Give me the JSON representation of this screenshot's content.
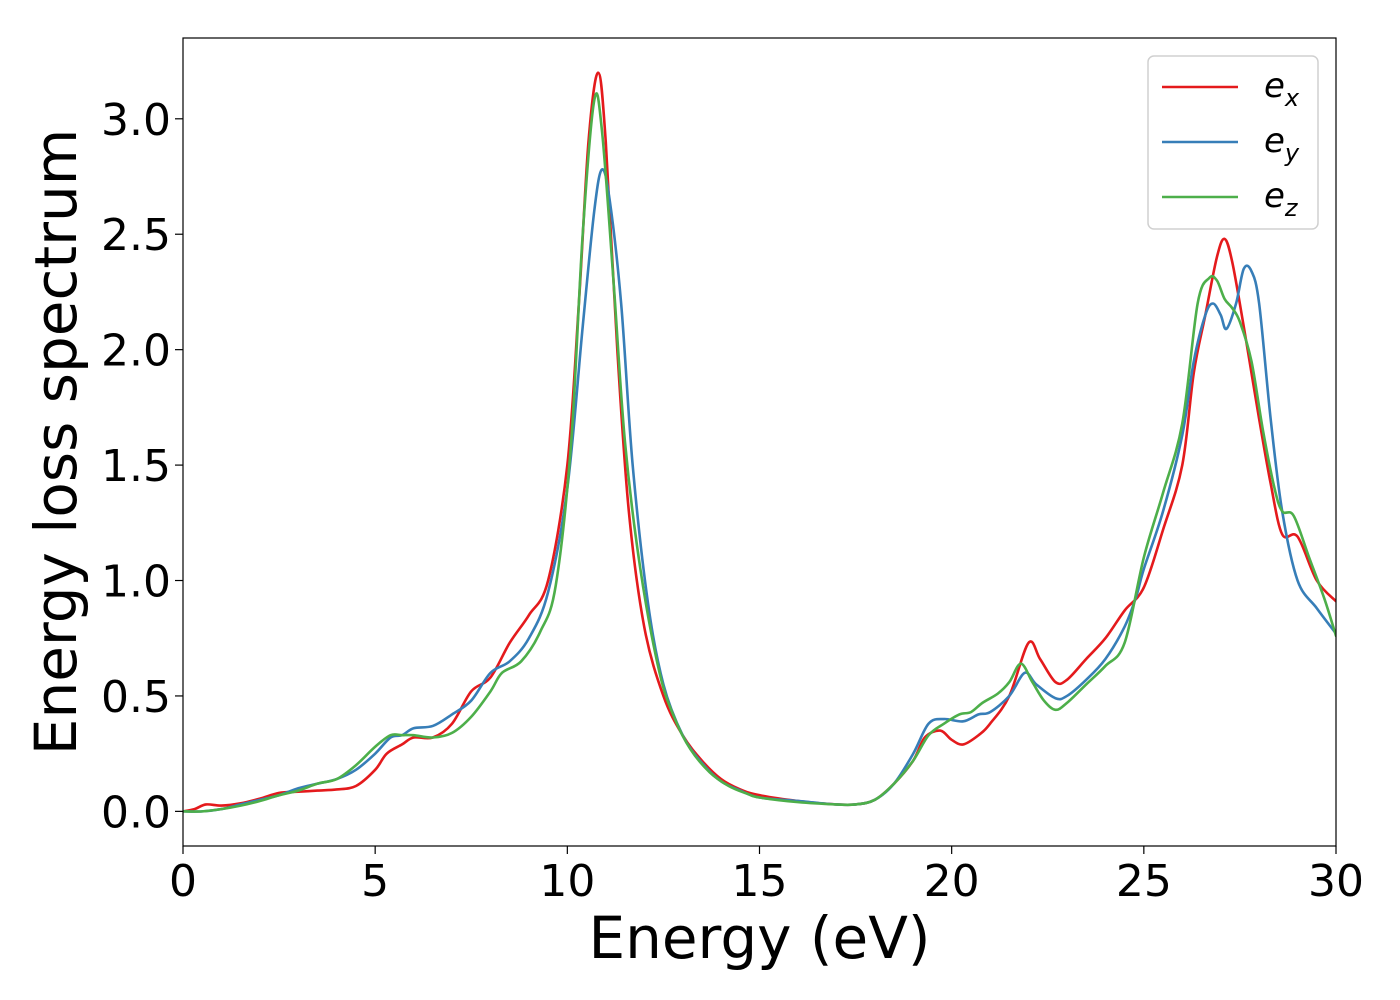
{
  "chart_data": {
    "type": "line",
    "xlabel": "Energy (eV)",
    "ylabel": "Energy loss spectrum",
    "xlim": [
      0,
      30
    ],
    "ylim": [
      -0.15,
      3.35
    ],
    "xticks": [
      "0",
      "5",
      "10",
      "15",
      "20",
      "25",
      "30"
    ],
    "yticks": [
      "0.0",
      "0.5",
      "1.0",
      "1.5",
      "2.0",
      "2.5",
      "3.0"
    ],
    "grid": false,
    "legend_position": "top-right",
    "series": [
      {
        "name": "e_x",
        "label_base": "e",
        "label_sub": "x",
        "color": "#e41a1c",
        "points": [
          [
            0,
            0
          ],
          [
            0.3,
            0.01
          ],
          [
            0.6,
            0.03
          ],
          [
            1,
            0.025
          ],
          [
            1.5,
            0.035
          ],
          [
            2,
            0.055
          ],
          [
            2.5,
            0.08
          ],
          [
            3,
            0.085
          ],
          [
            3.5,
            0.09
          ],
          [
            4,
            0.095
          ],
          [
            4.5,
            0.11
          ],
          [
            5,
            0.18
          ],
          [
            5.3,
            0.25
          ],
          [
            5.7,
            0.29
          ],
          [
            6,
            0.32
          ],
          [
            6.5,
            0.32
          ],
          [
            7,
            0.38
          ],
          [
            7.5,
            0.52
          ],
          [
            8,
            0.58
          ],
          [
            8.5,
            0.73
          ],
          [
            9,
            0.85
          ],
          [
            9.5,
            1.0
          ],
          [
            10,
            1.5
          ],
          [
            10.3,
            2.2
          ],
          [
            10.55,
            2.9
          ],
          [
            10.8,
            3.2
          ],
          [
            11,
            2.9
          ],
          [
            11.3,
            2.0
          ],
          [
            11.6,
            1.3
          ],
          [
            12,
            0.8
          ],
          [
            12.5,
            0.5
          ],
          [
            13,
            0.33
          ],
          [
            13.5,
            0.22
          ],
          [
            14,
            0.14
          ],
          [
            14.5,
            0.095
          ],
          [
            15,
            0.07
          ],
          [
            16,
            0.045
          ],
          [
            17,
            0.03
          ],
          [
            17.5,
            0.03
          ],
          [
            18,
            0.05
          ],
          [
            18.5,
            0.12
          ],
          [
            19,
            0.22
          ],
          [
            19.3,
            0.32
          ],
          [
            19.7,
            0.35
          ],
          [
            20,
            0.31
          ],
          [
            20.3,
            0.29
          ],
          [
            20.7,
            0.33
          ],
          [
            21,
            0.38
          ],
          [
            21.5,
            0.5
          ],
          [
            22,
            0.73
          ],
          [
            22.3,
            0.66
          ],
          [
            22.7,
            0.56
          ],
          [
            23,
            0.57
          ],
          [
            23.5,
            0.66
          ],
          [
            24,
            0.75
          ],
          [
            24.5,
            0.87
          ],
          [
            25,
            0.97
          ],
          [
            25.5,
            1.22
          ],
          [
            26,
            1.5
          ],
          [
            26.3,
            1.9
          ],
          [
            26.6,
            2.15
          ],
          [
            26.9,
            2.4
          ],
          [
            27.1,
            2.48
          ],
          [
            27.3,
            2.38
          ],
          [
            27.6,
            2.1
          ],
          [
            27.8,
            1.9
          ],
          [
            28,
            1.7
          ],
          [
            28.3,
            1.42
          ],
          [
            28.6,
            1.2
          ],
          [
            29,
            1.19
          ],
          [
            29.5,
            1.0
          ],
          [
            30,
            0.91
          ]
        ]
      },
      {
        "name": "e_y",
        "label_base": "e",
        "label_sub": "y",
        "color": "#377eb8",
        "points": [
          [
            0,
            0
          ],
          [
            0.5,
            0
          ],
          [
            1,
            0.01
          ],
          [
            1.5,
            0.03
          ],
          [
            2,
            0.05
          ],
          [
            2.5,
            0.07
          ],
          [
            3,
            0.1
          ],
          [
            3.5,
            0.12
          ],
          [
            4,
            0.14
          ],
          [
            4.5,
            0.18
          ],
          [
            5,
            0.25
          ],
          [
            5.4,
            0.32
          ],
          [
            5.7,
            0.33
          ],
          [
            6,
            0.36
          ],
          [
            6.5,
            0.37
          ],
          [
            7,
            0.42
          ],
          [
            7.5,
            0.48
          ],
          [
            8,
            0.6
          ],
          [
            8.5,
            0.65
          ],
          [
            9,
            0.75
          ],
          [
            9.5,
            0.95
          ],
          [
            10,
            1.4
          ],
          [
            10.4,
            2.1
          ],
          [
            10.7,
            2.6
          ],
          [
            10.9,
            2.78
          ],
          [
            11.1,
            2.65
          ],
          [
            11.4,
            2.2
          ],
          [
            11.7,
            1.5
          ],
          [
            12.1,
            0.9
          ],
          [
            12.5,
            0.55
          ],
          [
            13,
            0.33
          ],
          [
            13.5,
            0.21
          ],
          [
            14,
            0.13
          ],
          [
            14.5,
            0.09
          ],
          [
            15,
            0.06
          ],
          [
            16,
            0.045
          ],
          [
            17,
            0.03
          ],
          [
            17.5,
            0.03
          ],
          [
            18,
            0.05
          ],
          [
            18.5,
            0.12
          ],
          [
            19,
            0.25
          ],
          [
            19.4,
            0.38
          ],
          [
            19.8,
            0.4
          ],
          [
            20.3,
            0.39
          ],
          [
            20.7,
            0.42
          ],
          [
            21,
            0.43
          ],
          [
            21.5,
            0.5
          ],
          [
            21.9,
            0.6
          ],
          [
            22.2,
            0.55
          ],
          [
            22.7,
            0.49
          ],
          [
            23,
            0.5
          ],
          [
            23.5,
            0.57
          ],
          [
            24,
            0.66
          ],
          [
            24.5,
            0.8
          ],
          [
            24.8,
            0.93
          ],
          [
            25,
            1.05
          ],
          [
            25.5,
            1.3
          ],
          [
            26,
            1.63
          ],
          [
            26.3,
            1.95
          ],
          [
            26.6,
            2.15
          ],
          [
            26.8,
            2.2
          ],
          [
            27,
            2.15
          ],
          [
            27.15,
            2.09
          ],
          [
            27.4,
            2.2
          ],
          [
            27.6,
            2.35
          ],
          [
            27.8,
            2.34
          ],
          [
            28,
            2.2
          ],
          [
            28.3,
            1.7
          ],
          [
            28.6,
            1.3
          ],
          [
            29,
            1.0
          ],
          [
            29.5,
            0.88
          ],
          [
            30,
            0.77
          ]
        ]
      },
      {
        "name": "e_z",
        "label_base": "e",
        "label_sub": "z",
        "color": "#4daf4a",
        "points": [
          [
            0,
            0
          ],
          [
            0.5,
            0
          ],
          [
            1,
            0.01
          ],
          [
            1.5,
            0.025
          ],
          [
            2,
            0.045
          ],
          [
            2.5,
            0.07
          ],
          [
            3,
            0.09
          ],
          [
            3.5,
            0.12
          ],
          [
            4,
            0.14
          ],
          [
            4.5,
            0.2
          ],
          [
            5,
            0.28
          ],
          [
            5.4,
            0.33
          ],
          [
            5.7,
            0.33
          ],
          [
            6,
            0.33
          ],
          [
            6.5,
            0.32
          ],
          [
            7,
            0.34
          ],
          [
            7.5,
            0.41
          ],
          [
            8,
            0.52
          ],
          [
            8.3,
            0.6
          ],
          [
            8.8,
            0.65
          ],
          [
            9.3,
            0.78
          ],
          [
            9.7,
            0.98
          ],
          [
            10.1,
            1.6
          ],
          [
            10.4,
            2.5
          ],
          [
            10.7,
            3.08
          ],
          [
            10.9,
            2.95
          ],
          [
            11.2,
            2.3
          ],
          [
            11.5,
            1.6
          ],
          [
            11.9,
            1.05
          ],
          [
            12.4,
            0.6
          ],
          [
            12.8,
            0.4
          ],
          [
            13.2,
            0.27
          ],
          [
            13.7,
            0.17
          ],
          [
            14.2,
            0.11
          ],
          [
            14.7,
            0.075
          ],
          [
            15,
            0.06
          ],
          [
            16,
            0.04
          ],
          [
            17,
            0.03
          ],
          [
            17.5,
            0.03
          ],
          [
            18,
            0.05
          ],
          [
            18.5,
            0.12
          ],
          [
            19,
            0.22
          ],
          [
            19.4,
            0.33
          ],
          [
            19.8,
            0.38
          ],
          [
            20.2,
            0.42
          ],
          [
            20.5,
            0.43
          ],
          [
            20.8,
            0.47
          ],
          [
            21.2,
            0.51
          ],
          [
            21.5,
            0.56
          ],
          [
            21.8,
            0.64
          ],
          [
            22.1,
            0.56
          ],
          [
            22.4,
            0.48
          ],
          [
            22.7,
            0.44
          ],
          [
            23,
            0.47
          ],
          [
            23.5,
            0.55
          ],
          [
            24,
            0.63
          ],
          [
            24.5,
            0.73
          ],
          [
            25,
            1.1
          ],
          [
            25.5,
            1.38
          ],
          [
            26,
            1.68
          ],
          [
            26.4,
            2.2
          ],
          [
            26.7,
            2.31
          ],
          [
            26.9,
            2.3
          ],
          [
            27.1,
            2.22
          ],
          [
            27.3,
            2.18
          ],
          [
            27.5,
            2.12
          ],
          [
            27.8,
            1.95
          ],
          [
            28.1,
            1.65
          ],
          [
            28.4,
            1.4
          ],
          [
            28.6,
            1.3
          ],
          [
            28.9,
            1.28
          ],
          [
            29.3,
            1.1
          ],
          [
            29.7,
            0.92
          ],
          [
            30,
            0.76
          ]
        ]
      }
    ]
  }
}
